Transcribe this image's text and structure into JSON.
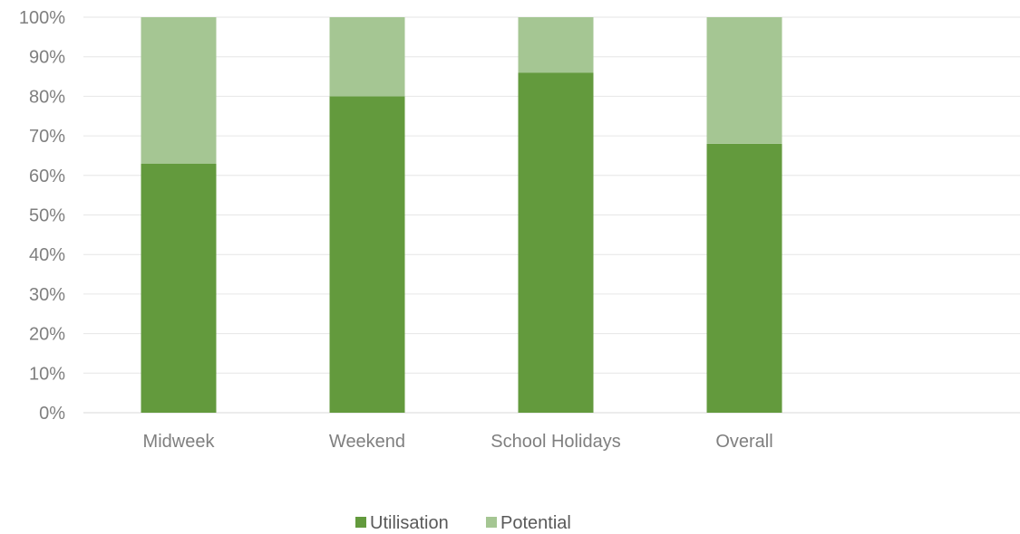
{
  "chart_data": {
    "type": "bar",
    "stacked": true,
    "categories": [
      "Midweek",
      "Weekend",
      "School Holidays",
      "Overall"
    ],
    "series": [
      {
        "name": "Utilisation",
        "values": [
          63,
          80,
          86,
          68
        ],
        "color": "#639a3d"
      },
      {
        "name": "Potential",
        "values": [
          37,
          20,
          14,
          32
        ],
        "color": "#a5c693"
      }
    ],
    "ylim": [
      0,
      100
    ],
    "yticks": [
      "0%",
      "10%",
      "20%",
      "30%",
      "40%",
      "50%",
      "60%",
      "70%",
      "80%",
      "90%",
      "100%"
    ],
    "grid": true,
    "legend": "bottom-center"
  }
}
